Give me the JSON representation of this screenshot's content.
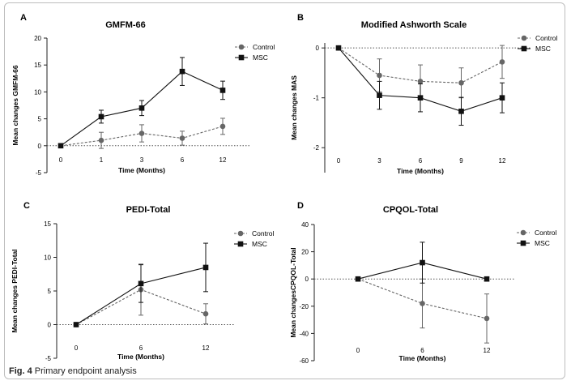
{
  "caption": {
    "label": "Fig. 4",
    "text": "Primary endpoint analysis"
  },
  "chart_data": [
    {
      "type": "line",
      "panel": "A",
      "title": "GMFM-66",
      "xlabel": "Time (Months)",
      "ylabel": "Mean changes GMFM-66",
      "categories": [
        "0",
        "1",
        "3",
        "6",
        "12"
      ],
      "ylim": [
        -5,
        20
      ],
      "yticks": [
        -5,
        0,
        5,
        10,
        15,
        20
      ],
      "series": [
        {
          "name": "Control",
          "marker": "circle",
          "dashed": true,
          "color": "#666666",
          "values": [
            0,
            1.0,
            2.3,
            1.4,
            3.6
          ],
          "err": [
            0,
            1.5,
            1.6,
            1.3,
            1.5
          ]
        },
        {
          "name": "MSC",
          "marker": "square",
          "dashed": false,
          "color": "#111111",
          "values": [
            0,
            5.4,
            7.0,
            13.8,
            10.3
          ],
          "err": [
            0,
            1.2,
            1.4,
            2.6,
            1.7
          ]
        }
      ],
      "legend": "top-right"
    },
    {
      "type": "line",
      "panel": "B",
      "title": "Modified Ashworth Scale",
      "xlabel": "Time (Months)",
      "ylabel": "Mean changes MAS",
      "categories": [
        "0",
        "3",
        "6",
        "9",
        "12"
      ],
      "ylim": [
        -2.5,
        0.1
      ],
      "yticks": [
        0,
        -1,
        -2
      ],
      "series": [
        {
          "name": "Control",
          "marker": "circle",
          "dashed": true,
          "color": "#666666",
          "values": [
            0,
            -0.55,
            -0.67,
            -0.7,
            -0.28
          ],
          "err": [
            0,
            0.33,
            0.33,
            0.3,
            0.33
          ]
        },
        {
          "name": "MSC",
          "marker": "square",
          "dashed": false,
          "color": "#111111",
          "values": [
            0,
            -0.95,
            -1.0,
            -1.27,
            -1.0
          ],
          "err": [
            0,
            0.28,
            0.28,
            0.28,
            0.3
          ]
        }
      ],
      "legend": "top-right"
    },
    {
      "type": "line",
      "panel": "C",
      "title": "PEDI-Total",
      "xlabel": "Time (Months)",
      "ylabel": "Mean changes PEDI-Total",
      "categories": [
        "0",
        "6",
        "12"
      ],
      "ylim": [
        -5,
        15
      ],
      "yticks": [
        -5,
        0,
        5,
        10,
        15
      ],
      "series": [
        {
          "name": "Control",
          "marker": "circle",
          "dashed": true,
          "color": "#666666",
          "values": [
            0,
            5.2,
            1.6
          ],
          "err": [
            0,
            3.8,
            1.5
          ]
        },
        {
          "name": "MSC",
          "marker": "square",
          "dashed": false,
          "color": "#111111",
          "values": [
            0,
            6.1,
            8.5
          ],
          "err": [
            0,
            2.8,
            3.6
          ]
        }
      ],
      "legend": "top-right"
    },
    {
      "type": "line",
      "panel": "D",
      "title": "CPQOL-Total",
      "xlabel": "Time (Months)",
      "ylabel": "Mean changesCPQOL-Total",
      "categories": [
        "0",
        "6",
        "12"
      ],
      "ylim": [
        -60,
        40
      ],
      "yticks": [
        -60,
        -40,
        -20,
        0,
        20,
        40
      ],
      "series": [
        {
          "name": "Control",
          "marker": "circle",
          "dashed": true,
          "color": "#666666",
          "values": [
            0,
            -18,
            -29
          ],
          "err": [
            0,
            18,
            18
          ]
        },
        {
          "name": "MSC",
          "marker": "square",
          "dashed": false,
          "color": "#111111",
          "values": [
            0,
            12,
            0
          ],
          "err": [
            0,
            15,
            0
          ]
        }
      ],
      "legend": "top-right"
    }
  ]
}
